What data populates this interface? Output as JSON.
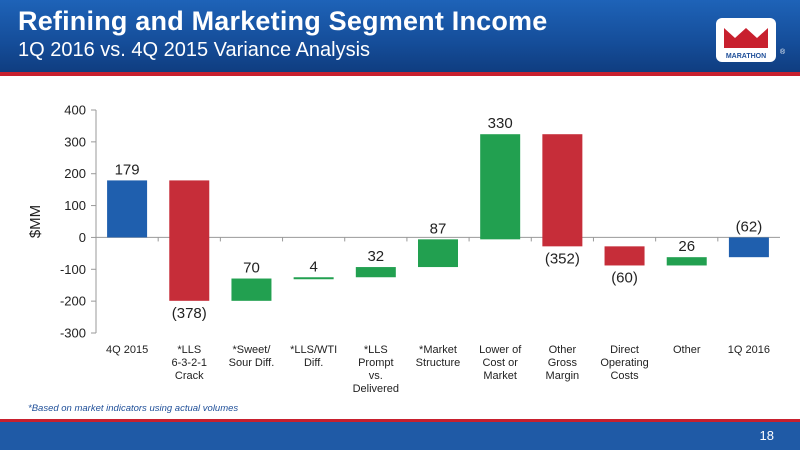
{
  "header": {
    "title": "Refining and Marketing Segment Income",
    "subtitle": "1Q 2016 vs. 4Q 2015 Variance Analysis"
  },
  "logo": {
    "text": "MARATHON",
    "mark": "®"
  },
  "footnote": "*Based on market indicators using actual volumes",
  "page_number": "18",
  "colors": {
    "blue": "#1f5fae",
    "red": "#c62d39",
    "green": "#22a050",
    "header": "#154d99",
    "accent_red": "#c8202e"
  },
  "chart_data": {
    "type": "bar",
    "subtype": "waterfall",
    "ylabel": "$MM",
    "ylim": [
      -300,
      400
    ],
    "yticks": [
      400,
      300,
      200,
      100,
      0,
      -100,
      -200,
      -300
    ],
    "ytick_labels": [
      "400",
      "300",
      "200",
      "100",
      "0",
      "-100",
      "-200",
      "-300"
    ],
    "grid": false,
    "categories": [
      [
        "4Q 2015"
      ],
      [
        "*LLS",
        "6-3-2-1",
        "Crack"
      ],
      [
        "*Sweet/",
        "Sour Diff."
      ],
      [
        "*LLS/WTI",
        "Diff."
      ],
      [
        "*LLS",
        "Prompt",
        "vs.",
        "Delivered"
      ],
      [
        "*Market",
        "Structure"
      ],
      [
        "Lower of",
        "Cost or",
        "Market"
      ],
      [
        "Other",
        "Gross",
        "Margin"
      ],
      [
        "Direct",
        "Operating",
        "Costs"
      ],
      [
        "Other"
      ],
      [
        "1Q 2016"
      ]
    ],
    "bars": [
      {
        "start": 0,
        "end": 179,
        "color": "blue",
        "label": "179",
        "label_pos": "above"
      },
      {
        "start": 179,
        "end": -199,
        "color": "red",
        "label": "(378)",
        "label_pos": "below"
      },
      {
        "start": -199,
        "end": -129,
        "color": "green",
        "label": "70",
        "label_pos": "above"
      },
      {
        "start": -129,
        "end": -125,
        "color": "green",
        "label": "4",
        "label_pos": "above"
      },
      {
        "start": -125,
        "end": -93,
        "color": "green",
        "label": "32",
        "label_pos": "above"
      },
      {
        "start": -93,
        "end": -6,
        "color": "green",
        "label": "87",
        "label_pos": "above"
      },
      {
        "start": -6,
        "end": 324,
        "color": "green",
        "label": "330",
        "label_pos": "above"
      },
      {
        "start": 324,
        "end": -28,
        "color": "red",
        "label": "(352)",
        "label_pos": "below"
      },
      {
        "start": -28,
        "end": -88,
        "color": "red",
        "label": "(60)",
        "label_pos": "below"
      },
      {
        "start": -88,
        "end": -62,
        "color": "green",
        "label": "26",
        "label_pos": "above"
      },
      {
        "start": 0,
        "end": -62,
        "color": "blue",
        "label": "(62)",
        "label_pos": "above"
      }
    ]
  }
}
